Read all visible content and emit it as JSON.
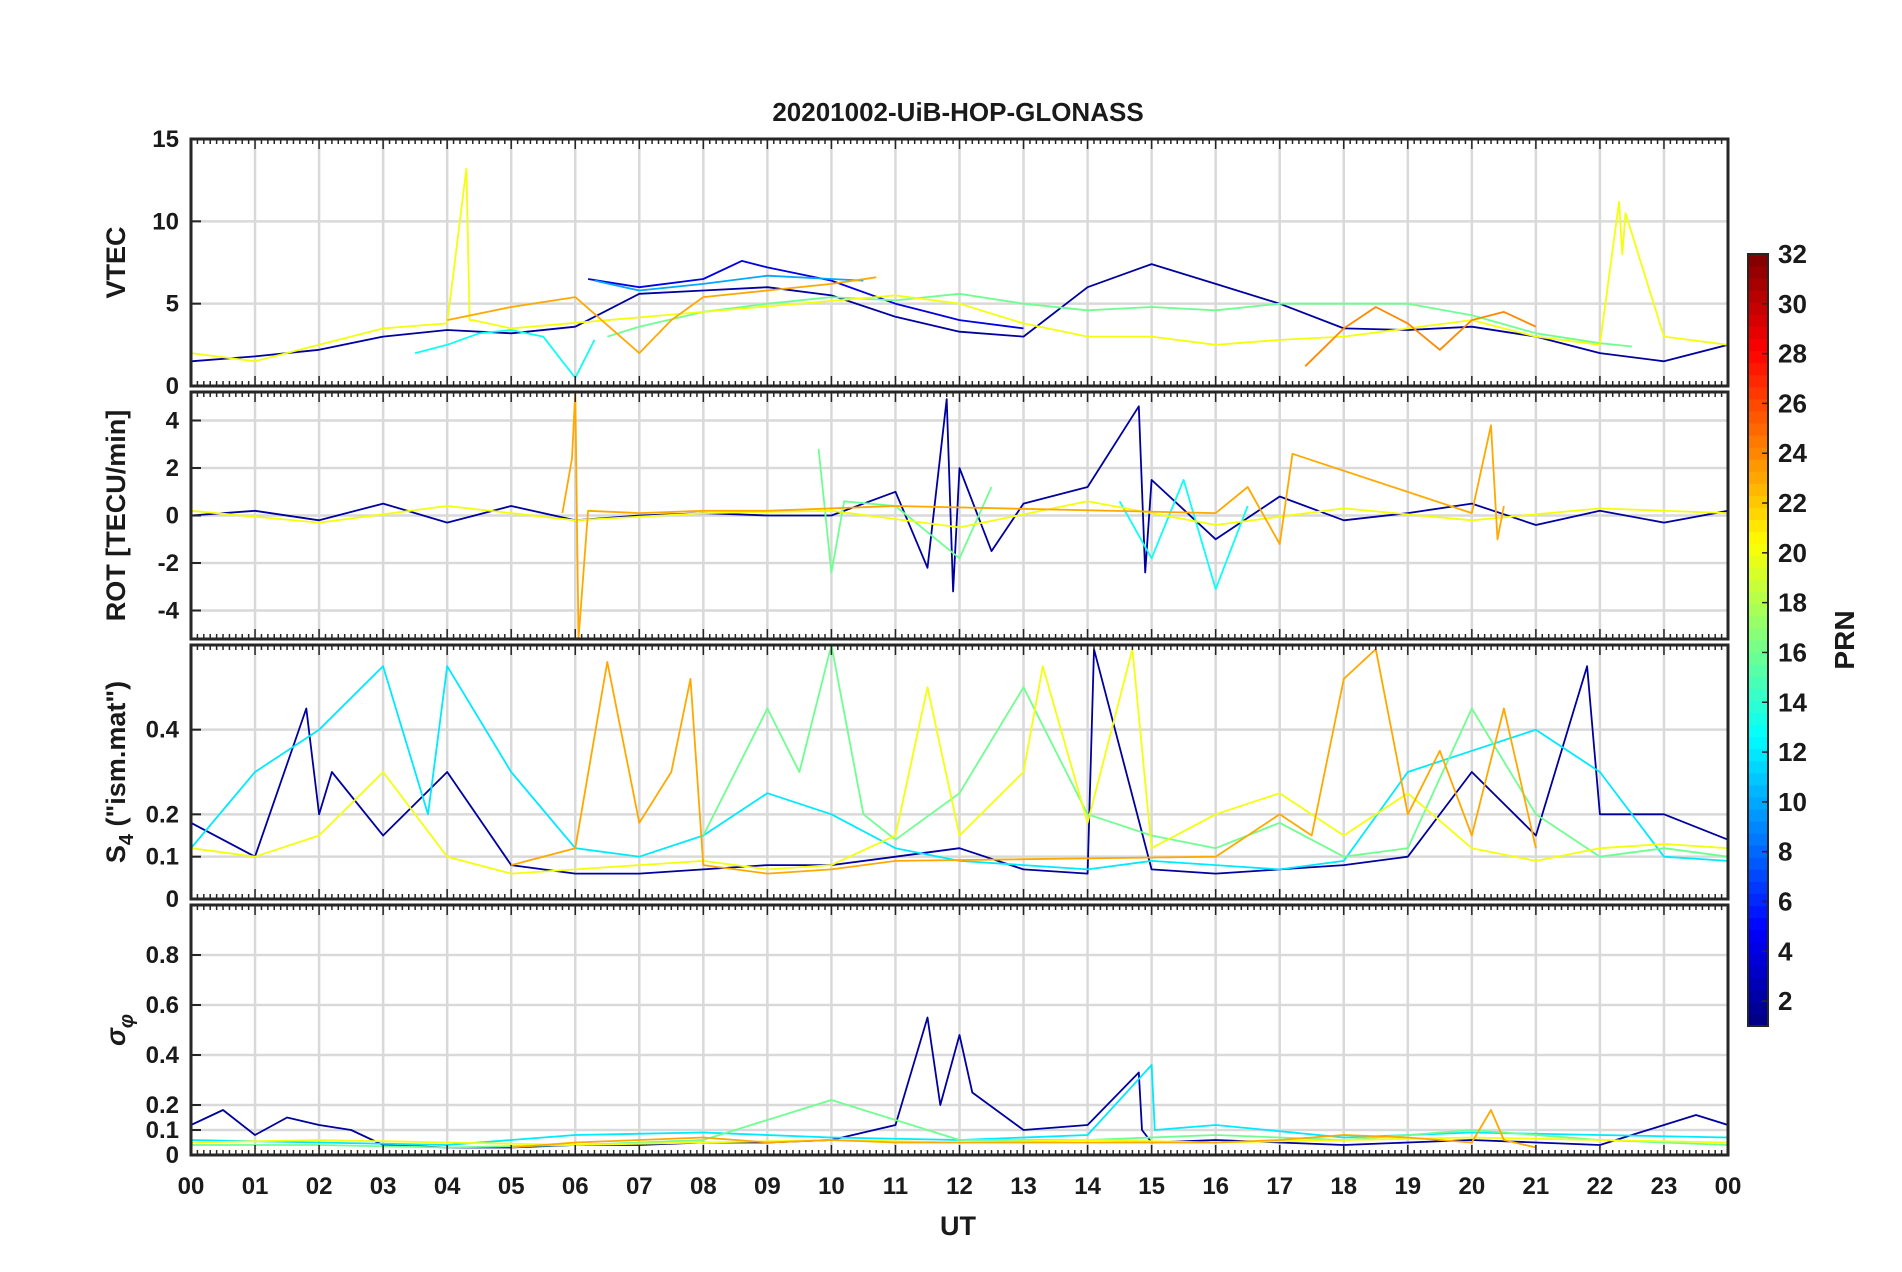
{
  "chart_data": {
    "type": "line",
    "title": "20201002-UiB-HOP-GLONASS",
    "xlabel": "UT",
    "x_unit": "hours UT",
    "xlim": [
      0,
      24
    ],
    "x_tick_labels": [
      "00",
      "01",
      "02",
      "03",
      "04",
      "05",
      "06",
      "07",
      "08",
      "09",
      "10",
      "11",
      "12",
      "13",
      "14",
      "15",
      "16",
      "17",
      "18",
      "19",
      "20",
      "21",
      "22",
      "23",
      "00"
    ],
    "grid": true,
    "colormap": "jet",
    "colorbar": {
      "label": "PRN",
      "range": [
        1,
        32
      ],
      "ticks": [
        2,
        4,
        6,
        8,
        10,
        12,
        14,
        16,
        18,
        20,
        22,
        24,
        26,
        28,
        30,
        32
      ],
      "placement": "right"
    },
    "panels": [
      {
        "id": "vtec",
        "ylabel": "VTEC",
        "ylim": [
          0,
          15
        ],
        "yticks": [
          0,
          5,
          10,
          15
        ],
        "series": [
          {
            "prn": 2,
            "x": [
              0,
              1,
              2,
              3,
              4,
              5,
              6,
              7,
              8,
              9,
              10,
              11,
              12,
              13,
              14,
              15,
              16,
              17,
              18,
              19,
              20,
              21,
              22,
              23,
              24
            ],
            "y": [
              1.5,
              1.8,
              2.2,
              3.0,
              3.4,
              3.2,
              3.6,
              5.6,
              5.8,
              6.0,
              5.5,
              4.2,
              3.3,
              3.0,
              6.0,
              7.4,
              6.2,
              5.0,
              3.5,
              3.4,
              3.6,
              3.0,
              2.0,
              1.5,
              2.5
            ]
          },
          {
            "prn": 4,
            "x": [
              6.2,
              7,
              8,
              8.6,
              9,
              10,
              11,
              11.5,
              12,
              13
            ],
            "y": [
              6.5,
              6.0,
              6.5,
              7.6,
              7.2,
              6.4,
              5.0,
              4.5,
              4.0,
              3.5
            ]
          },
          {
            "prn": 10,
            "x": [
              6.3,
              7,
              8,
              9,
              10,
              10.5
            ],
            "y": [
              6.4,
              5.8,
              6.2,
              6.7,
              6.5,
              6.4
            ]
          },
          {
            "prn": 13,
            "x": [
              3.5,
              4,
              4.5,
              5,
              5.5,
              5.8,
              6.0,
              6.3
            ],
            "y": [
              2.0,
              2.5,
              3.2,
              3.4,
              3.0,
              1.5,
              0.5,
              2.8
            ]
          },
          {
            "prn": 16,
            "x": [
              6.5,
              7,
              8,
              9,
              10,
              11,
              12,
              13,
              14,
              15,
              16,
              17,
              18,
              19,
              20,
              21,
              22,
              22.5
            ],
            "y": [
              3.0,
              3.6,
              4.5,
              5.0,
              5.4,
              5.2,
              5.6,
              5.0,
              4.6,
              4.8,
              4.6,
              5.0,
              5.0,
              5.0,
              4.3,
              3.2,
              2.6,
              2.4
            ]
          },
          {
            "prn": 20,
            "x": [
              0,
              1,
              2,
              3,
              4,
              4.3,
              4.35,
              4.4,
              5,
              11,
              12,
              13,
              14,
              15,
              16,
              17,
              18,
              19,
              20,
              21,
              22,
              22.3,
              22.35,
              22.4,
              23,
              24
            ],
            "y": [
              2.0,
              1.5,
              2.5,
              3.5,
              3.8,
              13.2,
              4.0,
              4.0,
              3.5,
              5.5,
              5.0,
              3.8,
              3.0,
              3.0,
              2.5,
              2.8,
              3.0,
              3.5,
              4.0,
              3.0,
              2.5,
              11.2,
              8.0,
              10.5,
              3.0,
              2.5
            ]
          },
          {
            "prn": 23,
            "x": [
              4,
              5,
              6,
              7,
              7.5,
              8,
              9,
              10,
              10.7
            ],
            "y": [
              4.0,
              4.8,
              5.4,
              2.0,
              4.0,
              5.4,
              5.8,
              6.2,
              6.6
            ]
          },
          {
            "prn": 24,
            "x": [
              17.4,
              18,
              18.5,
              19,
              19.5,
              20,
              20.5,
              21
            ],
            "y": [
              1.2,
              3.5,
              4.8,
              3.8,
              2.2,
              4.0,
              4.5,
              3.6
            ]
          }
        ]
      },
      {
        "id": "rot",
        "ylabel": "ROT [TECU/min]",
        "ylim": [
          -5.2,
          5.2
        ],
        "yticks": [
          -4,
          -2,
          0,
          2,
          4
        ],
        "series": [
          {
            "prn": 2,
            "x": [
              0,
              1,
              2,
              3,
              4,
              5,
              6,
              7,
              8,
              9,
              10,
              11,
              11.5,
              11.8,
              11.9,
              12,
              12.5,
              13,
              14,
              14.8,
              14.9,
              15,
              16,
              17,
              18,
              19,
              20,
              21,
              22,
              23,
              24
            ],
            "y": [
              0,
              0.2,
              -0.2,
              0.5,
              -0.3,
              0.4,
              -0.2,
              0,
              0.1,
              0,
              0,
              1.0,
              -2.2,
              4.9,
              -3.2,
              2.0,
              -1.5,
              0.5,
              1.2,
              4.6,
              -2.4,
              1.5,
              -1.0,
              0.8,
              -0.2,
              0.1,
              0.5,
              -0.4,
              0.2,
              -0.3,
              0.2
            ]
          },
          {
            "prn": 13,
            "x": [
              14.5,
              15,
              15.5,
              16,
              16.5
            ],
            "y": [
              0.6,
              -1.8,
              1.5,
              -3.1,
              0.4
            ]
          },
          {
            "prn": 16,
            "x": [
              9.8,
              10,
              10.2,
              11,
              12,
              12.5
            ],
            "y": [
              2.8,
              -2.4,
              0.6,
              0.4,
              -1.8,
              1.2
            ]
          },
          {
            "prn": 20,
            "x": [
              0,
              2,
              4,
              6,
              8,
              10,
              12,
              14,
              16,
              18,
              20,
              22,
              24
            ],
            "y": [
              0.2,
              -0.3,
              0.4,
              -0.2,
              0.1,
              0.2,
              -0.5,
              0.6,
              -0.4,
              0.3,
              -0.2,
              0.3,
              0.1
            ]
          },
          {
            "prn": 23,
            "x": [
              5.8,
              5.95,
              6.0,
              6.05,
              6.2,
              7,
              8,
              9,
              10,
              11,
              16,
              16.5,
              17,
              17.2,
              20,
              20.3,
              20.4,
              20.5
            ],
            "y": [
              0.1,
              2.4,
              5.2,
              -5.2,
              0.2,
              0.1,
              0.2,
              0.2,
              0.3,
              0.4,
              0.1,
              1.2,
              -1.2,
              2.6,
              0.1,
              3.8,
              -1.0,
              0.4
            ]
          }
        ]
      },
      {
        "id": "s4",
        "ylabel": "S4 (\"ism.mat\")",
        "ylim": [
          0,
          0.6
        ],
        "yticks": [
          0,
          0.1,
          0.2,
          0.4
        ],
        "series": [
          {
            "prn": 2,
            "x": [
              0,
              1,
              1.8,
              2,
              2.2,
              3,
              4,
              5,
              6,
              7,
              8,
              9,
              10,
              11,
              12,
              13,
              14,
              14.1,
              15,
              16,
              17,
              18,
              19,
              20,
              21,
              21.8,
              22,
              23,
              24
            ],
            "y": [
              0.18,
              0.1,
              0.45,
              0.2,
              0.3,
              0.15,
              0.3,
              0.08,
              0.06,
              0.06,
              0.07,
              0.08,
              0.08,
              0.1,
              0.12,
              0.07,
              0.06,
              0.59,
              0.07,
              0.06,
              0.07,
              0.08,
              0.1,
              0.3,
              0.15,
              0.55,
              0.2,
              0.2,
              0.14
            ]
          },
          {
            "prn": 12,
            "x": [
              0,
              1,
              2,
              3,
              3.7,
              4,
              5,
              6,
              7,
              8,
              9,
              10,
              11,
              12,
              13,
              14,
              15,
              16,
              17,
              18,
              19,
              20,
              21,
              22,
              23,
              24
            ],
            "y": [
              0.12,
              0.3,
              0.4,
              0.55,
              0.2,
              0.55,
              0.3,
              0.12,
              0.1,
              0.15,
              0.25,
              0.2,
              0.12,
              0.09,
              0.08,
              0.07,
              0.09,
              0.08,
              0.07,
              0.09,
              0.3,
              0.35,
              0.4,
              0.3,
              0.1,
              0.09
            ]
          },
          {
            "prn": 16,
            "x": [
              8,
              9,
              9.5,
              10,
              10.5,
              11,
              12,
              13,
              14,
              15,
              16,
              17,
              18,
              19,
              20,
              21,
              22,
              23,
              24
            ],
            "y": [
              0.15,
              0.45,
              0.3,
              0.6,
              0.2,
              0.14,
              0.25,
              0.5,
              0.2,
              0.15,
              0.12,
              0.18,
              0.1,
              0.12,
              0.45,
              0.2,
              0.1,
              0.12,
              0.1
            ]
          },
          {
            "prn": 20,
            "x": [
              0,
              1,
              2,
              3,
              4,
              5,
              6,
              7,
              8,
              9,
              10,
              11,
              11.5,
              12,
              13,
              13.3,
              14,
              14.7,
              15,
              16,
              17,
              18,
              19,
              20,
              21,
              22,
              23,
              24
            ],
            "y": [
              0.12,
              0.1,
              0.15,
              0.3,
              0.1,
              0.06,
              0.07,
              0.08,
              0.09,
              0.07,
              0.08,
              0.15,
              0.5,
              0.15,
              0.3,
              0.55,
              0.18,
              0.59,
              0.12,
              0.2,
              0.25,
              0.15,
              0.25,
              0.12,
              0.09,
              0.12,
              0.13,
              0.12
            ]
          },
          {
            "prn": 23,
            "x": [
              5,
              6,
              6.5,
              7,
              7.5,
              7.8,
              8,
              9,
              10,
              11,
              16,
              17,
              17.5,
              18,
              18.5,
              19,
              19.5,
              20,
              20.5,
              21
            ],
            "y": [
              0.08,
              0.12,
              0.56,
              0.18,
              0.3,
              0.52,
              0.08,
              0.06,
              0.07,
              0.09,
              0.1,
              0.2,
              0.15,
              0.52,
              0.59,
              0.2,
              0.35,
              0.15,
              0.45,
              0.12
            ]
          }
        ]
      },
      {
        "id": "sigma_phi",
        "ylabel": "σφ",
        "ylim": [
          0,
          1
        ],
        "yticks": [
          0,
          0.1,
          0.2,
          0.4,
          0.6,
          0.8
        ],
        "series": [
          {
            "prn": 2,
            "x": [
              0,
              0.5,
              1,
              1.5,
              2,
              2.5,
              3,
              4,
              5,
              6,
              7,
              8,
              9,
              10,
              11,
              11.5,
              11.7,
              12,
              12.2,
              13,
              14,
              14.8,
              14.85,
              15,
              16,
              17,
              18,
              19,
              20,
              21,
              22,
              23,
              23.5,
              24
            ],
            "y": [
              0.12,
              0.18,
              0.08,
              0.15,
              0.12,
              0.1,
              0.04,
              0.03,
              0.03,
              0.04,
              0.04,
              0.05,
              0.05,
              0.06,
              0.12,
              0.55,
              0.2,
              0.48,
              0.25,
              0.1,
              0.12,
              0.33,
              0.1,
              0.05,
              0.06,
              0.05,
              0.04,
              0.05,
              0.06,
              0.05,
              0.04,
              0.12,
              0.16,
              0.12
            ]
          },
          {
            "prn": 12,
            "x": [
              0,
              2,
              4,
              6,
              8,
              10,
              12,
              14,
              15,
              15.05,
              16,
              18,
              20,
              22,
              24
            ],
            "y": [
              0.06,
              0.05,
              0.04,
              0.08,
              0.09,
              0.07,
              0.06,
              0.08,
              0.36,
              0.1,
              0.12,
              0.07,
              0.09,
              0.08,
              0.07
            ]
          },
          {
            "prn": 16,
            "x": [
              0,
              2,
              4,
              6,
              8,
              10,
              12,
              14,
              16,
              18,
              20,
              22,
              24
            ],
            "y": [
              0.04,
              0.04,
              0.03,
              0.04,
              0.06,
              0.22,
              0.06,
              0.06,
              0.08,
              0.06,
              0.1,
              0.06,
              0.04
            ]
          },
          {
            "prn": 20,
            "x": [
              0,
              2,
              4,
              6,
              8,
              10,
              12,
              14,
              16,
              18,
              20,
              22,
              24
            ],
            "y": [
              0.05,
              0.06,
              0.05,
              0.04,
              0.05,
              0.06,
              0.05,
              0.06,
              0.05,
              0.06,
              0.07,
              0.06,
              0.05
            ]
          },
          {
            "prn": 23,
            "x": [
              5,
              6,
              7,
              8,
              9,
              10,
              11,
              16,
              17,
              18,
              19,
              20,
              20.3,
              20.5,
              21
            ],
            "y": [
              0.03,
              0.05,
              0.06,
              0.07,
              0.05,
              0.06,
              0.05,
              0.05,
              0.06,
              0.08,
              0.07,
              0.05,
              0.18,
              0.06,
              0.03
            ]
          }
        ]
      }
    ]
  }
}
